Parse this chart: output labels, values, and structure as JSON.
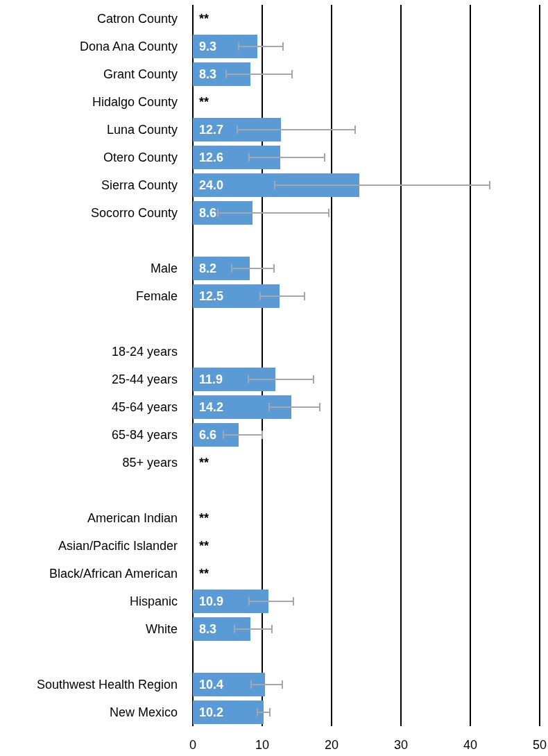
{
  "chart_data": {
    "type": "bar",
    "orientation": "horizontal",
    "categories": [
      "Catron County",
      "Dona Ana County",
      "Grant County",
      "Hidalgo County",
      "Luna County",
      "Otero County",
      "Sierra County",
      "Socorro County",
      null,
      "Male",
      "Female",
      null,
      "18-24 years",
      "25-44 years",
      "45-64 years",
      "65-84 years",
      "85+ years",
      null,
      "American Indian",
      "Asian/Pacific Islander",
      "Black/African American",
      "Hispanic",
      "White",
      null,
      "Southwest Health Region",
      "New Mexico"
    ],
    "values": [
      null,
      9.3,
      8.3,
      null,
      12.7,
      12.6,
      24.0,
      8.6,
      null,
      8.2,
      12.5,
      null,
      null,
      11.9,
      14.2,
      6.6,
      null,
      null,
      null,
      null,
      null,
      10.9,
      8.3,
      null,
      10.4,
      10.2
    ],
    "value_labels": [
      "**",
      "9.3",
      "8.3",
      "**",
      "12.7",
      "12.6",
      "24.0",
      "8.6",
      null,
      "8.2",
      "12.5",
      null,
      null,
      "11.9",
      "14.2",
      "6.6",
      "**",
      null,
      "**",
      "**",
      "**",
      "10.9",
      "8.3",
      null,
      "10.4",
      "10.2"
    ],
    "errors": [
      null,
      [
        6.6,
        13.0
      ],
      [
        4.8,
        14.3
      ],
      null,
      [
        6.4,
        23.4
      ],
      [
        8.1,
        19.0
      ],
      [
        11.8,
        42.8
      ],
      [
        3.6,
        19.6
      ],
      null,
      [
        5.6,
        11.7
      ],
      [
        9.7,
        16.1
      ],
      null,
      null,
      [
        8.0,
        17.4
      ],
      [
        11.0,
        18.3
      ],
      [
        4.4,
        10.0
      ],
      null,
      null,
      null,
      null,
      null,
      [
        8.1,
        14.5
      ],
      [
        6.0,
        11.4
      ],
      null,
      [
        8.4,
        12.9
      ],
      [
        9.3,
        11.1
      ]
    ],
    "color": "#5b9bd5",
    "xlim": [
      0,
      50
    ],
    "xticks": [
      0,
      10,
      20,
      30,
      40,
      50
    ],
    "grid": "x"
  }
}
